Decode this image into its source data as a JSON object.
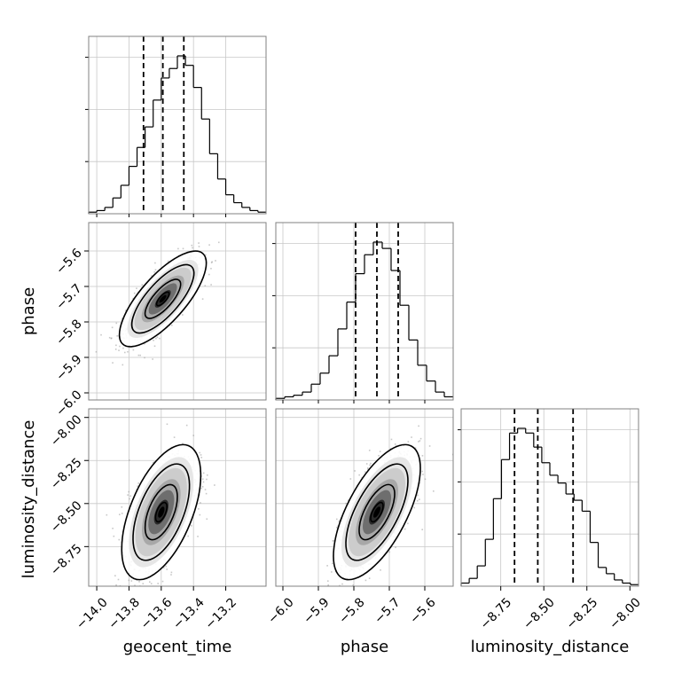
{
  "chart_data": {
    "type": "corner",
    "parameters": [
      "geocent_time",
      "phase",
      "luminosity_distance"
    ],
    "axis_labels": {
      "geocent_time": "geocent_time",
      "phase": "phase",
      "luminosity_distance": "luminosity_distance"
    },
    "ranges": {
      "geocent_time": [
        -14.05,
        -12.95
      ],
      "phase": [
        -6.02,
        -5.52
      ],
      "luminosity_distance": [
        -8.98,
        -7.95
      ]
    },
    "ticks": {
      "geocent_time": {
        "values": [
          -14.0,
          -13.8,
          -13.6,
          -13.4,
          -13.2
        ],
        "labels": [
          "−14.0",
          "−13.8",
          "−13.6",
          "−13.4",
          "−13.2"
        ]
      },
      "phase": {
        "values": [
          -6.0,
          -5.9,
          -5.8,
          -5.7,
          -5.6
        ],
        "labels": [
          "−6.0",
          "−5.9",
          "−5.8",
          "−5.7",
          "−5.6"
        ]
      },
      "luminosity_distance": {
        "values": [
          -8.75,
          -8.5,
          -8.25,
          -8.0
        ],
        "labels": [
          "−8.75",
          "−8.50",
          "−8.25",
          "−8.00"
        ]
      }
    },
    "quantiles": {
      "geocent_time": [
        -13.71,
        -13.59,
        -13.46
      ],
      "phase": [
        -5.795,
        -5.735,
        -5.675
      ],
      "luminosity_distance": [
        -8.67,
        -8.535,
        -8.33
      ]
    },
    "histograms": {
      "geocent_time": {
        "edges": [
          -14.05,
          -12.95
        ],
        "counts": [
          1,
          2,
          4,
          10,
          18,
          30,
          42,
          55,
          72,
          86,
          92,
          100,
          94,
          80,
          60,
          38,
          22,
          12,
          7,
          4,
          2,
          1
        ]
      },
      "phase": {
        "edges": [
          -6.02,
          -5.52
        ],
        "counts": [
          1,
          2,
          3,
          5,
          10,
          17,
          28,
          45,
          62,
          80,
          92,
          100,
          96,
          82,
          60,
          38,
          22,
          12,
          5,
          2
        ]
      },
      "luminosity_distance": {
        "edges": [
          -8.98,
          -7.95
        ],
        "counts": [
          2,
          5,
          13,
          30,
          56,
          81,
          98,
          101,
          98,
          89,
          79,
          71,
          66,
          59,
          55,
          48,
          28,
          12,
          8,
          4,
          2,
          1
        ]
      }
    },
    "joint": {
      "geocent_time|phase": {
        "mean": [
          -13.59,
          -5.735
        ],
        "sd": [
          0.11,
          0.055
        ],
        "rho": 0.75
      },
      "geocent_time|luminosity_distance": {
        "mean": [
          -13.6,
          -8.55
        ],
        "sd": [
          0.1,
          0.16
        ],
        "rho": 0.55
      },
      "phase|luminosity_distance": {
        "mean": [
          -5.735,
          -8.55
        ],
        "sd": [
          0.05,
          0.16
        ],
        "rho": 0.65
      }
    },
    "grid": true,
    "legend": "none"
  }
}
